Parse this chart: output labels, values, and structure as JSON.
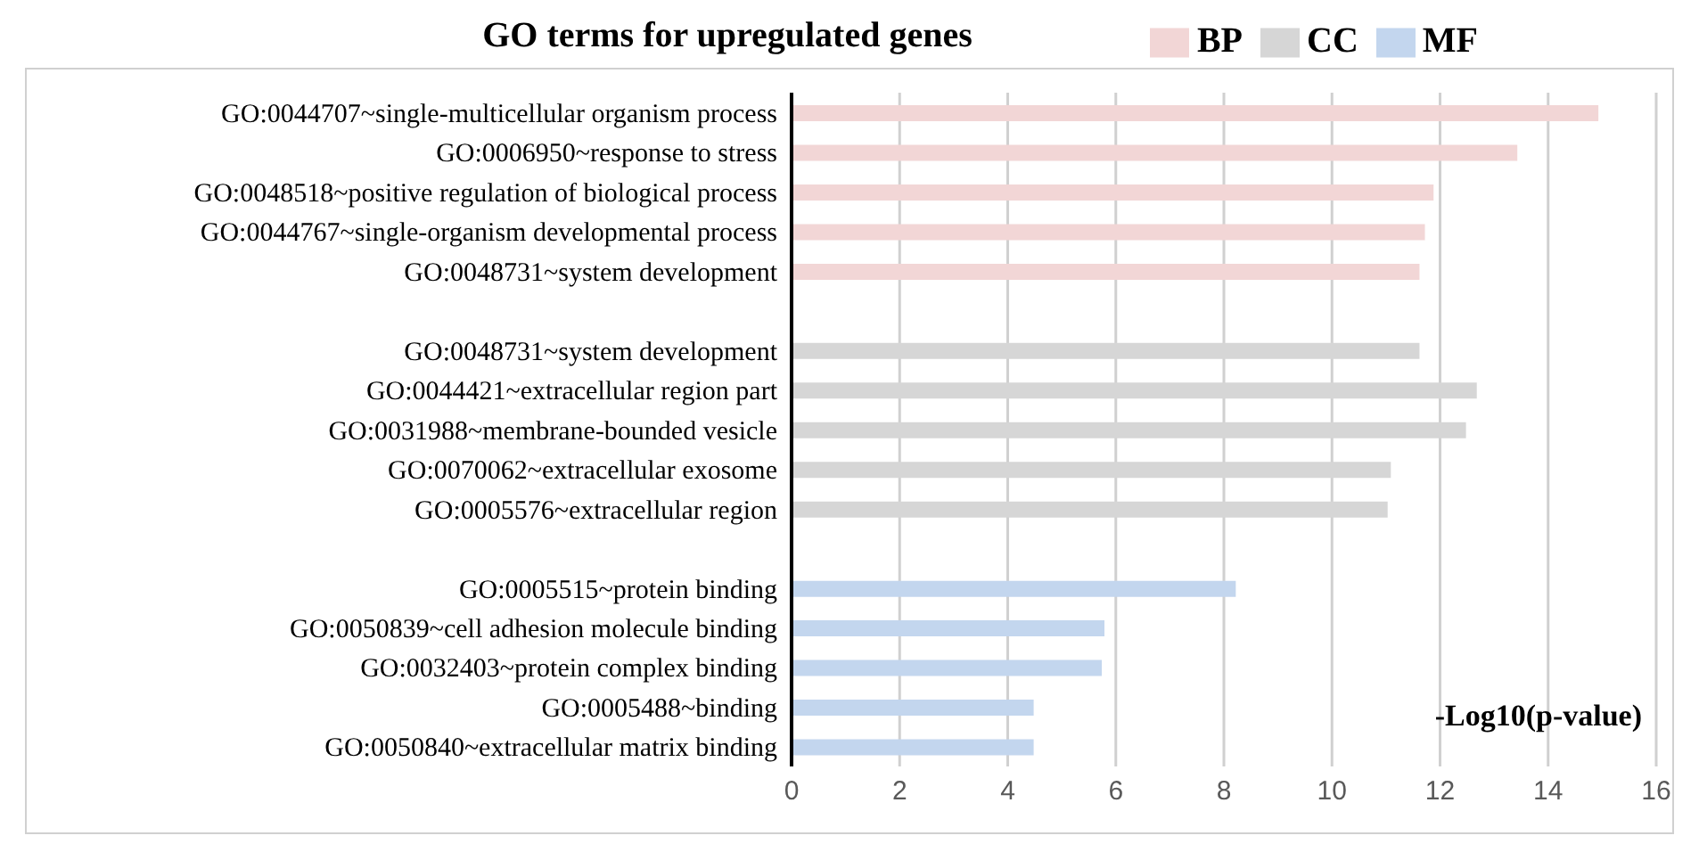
{
  "chart_data": {
    "type": "bar",
    "orientation": "horizontal",
    "stacked": true,
    "title": "GO terms for upregulated genes",
    "xlabel": "-Log10(p-value)",
    "categories": [
      "GO:0044707~single-multicellular organism process",
      "GO:0006950~response to stress",
      "GO:0048518~positive regulation of biological process",
      "GO:0044767~single-organism developmental process",
      "GO:0048731~system development",
      null,
      "GO:0048731~system development",
      "GO:0044421~extracellular region part",
      "GO:0031988~membrane-bounded vesicle",
      "GO:0070062~extracellular exosome",
      "GO:0005576~extracellular region",
      null,
      "GO:0005515~protein binding",
      "GO:0050839~cell adhesion molecule binding",
      "GO:0032403~protein complex binding",
      "GO:0005488~binding",
      "GO:0050840~extracellular matrix binding"
    ],
    "series": [
      {
        "name": "BP",
        "color": "#f2d6d6",
        "values": [
          14.93,
          13.43,
          11.88,
          11.72,
          11.62,
          null,
          null,
          null,
          null,
          null,
          null,
          null,
          null,
          null,
          null,
          null,
          null
        ]
      },
      {
        "name": "CC",
        "color": "#d6d6d6",
        "values": [
          null,
          null,
          null,
          null,
          null,
          null,
          11.62,
          12.68,
          12.48,
          11.09,
          11.03,
          null,
          null,
          null,
          null,
          null,
          null
        ]
      },
      {
        "name": "MF",
        "color": "#c3d6ee",
        "values": [
          null,
          null,
          null,
          null,
          null,
          null,
          null,
          null,
          null,
          null,
          null,
          null,
          8.22,
          5.79,
          5.74,
          4.48,
          4.48
        ]
      }
    ],
    "xlim": [
      0,
      16
    ],
    "xticks": [
      0,
      2,
      4,
      6,
      8,
      10,
      12,
      14,
      16
    ],
    "grid": "x",
    "legend": "top right"
  }
}
